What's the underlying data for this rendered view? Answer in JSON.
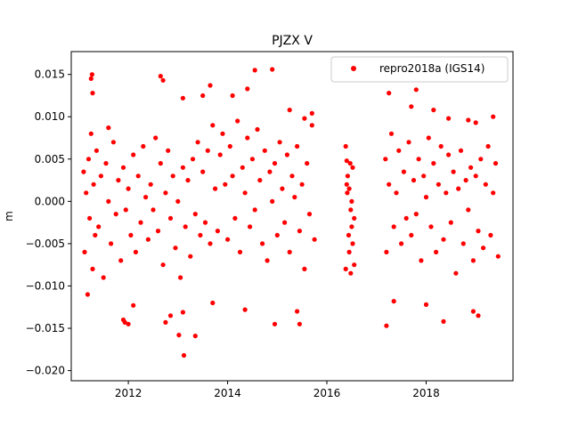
{
  "chart_data": {
    "type": "scatter",
    "title": "PJZX V",
    "xlabel": "",
    "ylabel": "m",
    "xlim": [
      2010.85,
      2019.75
    ],
    "ylim": [
      -0.0212,
      0.0177
    ],
    "xticks": [
      {
        "value": 2012,
        "label": "2012"
      },
      {
        "value": 2014,
        "label": "2014"
      },
      {
        "value": 2016,
        "label": "2016"
      },
      {
        "value": 2018,
        "label": "2018"
      }
    ],
    "yticks": [
      {
        "value": 0.015,
        "label": "0.015"
      },
      {
        "value": 0.01,
        "label": "0.010"
      },
      {
        "value": 0.005,
        "label": "0.005"
      },
      {
        "value": 0.0,
        "label": "0.000"
      },
      {
        "value": -0.005,
        "label": "−0.005"
      },
      {
        "value": -0.01,
        "label": "−0.010"
      },
      {
        "value": -0.015,
        "label": "−0.015"
      },
      {
        "value": -0.02,
        "label": "−0.020"
      }
    ],
    "grid": false,
    "legend_position": "top-right",
    "series": [
      {
        "name": "repro2018a (IGS14)",
        "color": "#ff0000",
        "x": [
          2011.1,
          2011.12,
          2011.15,
          2011.18,
          2011.2,
          2011.22,
          2011.25,
          2011.28,
          2011.3,
          2011.33,
          2011.36,
          2011.4,
          2011.45,
          2011.5,
          2011.55,
          2011.6,
          2011.65,
          2011.7,
          2011.75,
          2011.8,
          2011.85,
          2011.9,
          2011.95,
          2012.0,
          2012.05,
          2012.1,
          2012.15,
          2012.2,
          2012.25,
          2012.3,
          2012.35,
          2012.4,
          2012.45,
          2012.5,
          2012.55,
          2012.6,
          2012.65,
          2012.7,
          2012.75,
          2012.8,
          2012.85,
          2012.9,
          2012.95,
          2013.0,
          2013.05,
          2013.1,
          2013.15,
          2013.2,
          2013.25,
          2013.3,
          2013.35,
          2013.4,
          2013.45,
          2013.5,
          2013.55,
          2013.6,
          2013.65,
          2013.7,
          2013.75,
          2013.8,
          2013.85,
          2013.9,
          2013.95,
          2014.0,
          2014.05,
          2014.1,
          2014.15,
          2014.2,
          2014.25,
          2014.3,
          2014.35,
          2014.4,
          2014.45,
          2014.5,
          2014.55,
          2014.6,
          2014.65,
          2014.7,
          2014.75,
          2014.8,
          2014.85,
          2014.9,
          2014.95,
          2015.0,
          2015.05,
          2015.1,
          2015.15,
          2015.2,
          2015.25,
          2015.3,
          2015.35,
          2015.4,
          2015.45,
          2015.5,
          2015.55,
          2015.6,
          2015.65,
          2015.7,
          2015.75,
          2011.27,
          2011.25,
          2011.28,
          2011.6,
          2012.0,
          2012.65,
          2012.7,
          2013.1,
          2013.5,
          2013.65,
          2014.1,
          2014.4,
          2014.55,
          2014.9,
          2015.25,
          2015.55,
          2015.7,
          2011.9,
          2011.93,
          2012.1,
          2012.75,
          2012.85,
          2013.02,
          2013.1,
          2013.12,
          2013.35,
          2013.7,
          2014.35,
          2014.95,
          2015.4,
          2015.45,
          2016.38,
          2016.4,
          2016.42,
          2016.45,
          2016.48,
          2016.5,
          2016.52,
          2016.55,
          2016.4,
          2016.45,
          2016.5,
          2016.38,
          2016.52,
          2016.44,
          2016.48,
          2016.41,
          2016.55,
          2016.47,
          2017.18,
          2017.2,
          2017.25,
          2017.3,
          2017.35,
          2017.4,
          2017.45,
          2017.5,
          2017.55,
          2017.6,
          2017.65,
          2017.7,
          2017.75,
          2017.8,
          2017.85,
          2017.9,
          2017.95,
          2018.0,
          2018.05,
          2018.1,
          2018.15,
          2018.2,
          2018.25,
          2018.3,
          2018.35,
          2018.4,
          2018.45,
          2018.5,
          2018.55,
          2018.6,
          2018.65,
          2018.7,
          2018.75,
          2018.8,
          2018.85,
          2018.9,
          2018.95,
          2019.0,
          2019.05,
          2019.1,
          2019.15,
          2019.2,
          2019.25,
          2019.3,
          2019.35,
          2019.4,
          2019.45,
          2017.25,
          2017.8,
          2017.7,
          2018.15,
          2018.45,
          2018.85,
          2019.0,
          2019.35,
          2017.2,
          2017.35,
          2018.0,
          2018.35,
          2018.95,
          2019.05
        ],
        "y": [
          0.0035,
          -0.006,
          0.001,
          -0.011,
          0.005,
          -0.002,
          0.008,
          -0.008,
          0.002,
          -0.004,
          0.006,
          -0.003,
          0.003,
          -0.009,
          0.0045,
          0.0,
          -0.005,
          0.007,
          -0.0015,
          0.0025,
          -0.007,
          0.004,
          -0.001,
          0.0015,
          -0.004,
          0.0055,
          -0.006,
          0.003,
          -0.0025,
          0.0065,
          0.0005,
          -0.0045,
          0.002,
          -0.001,
          0.0075,
          -0.0035,
          0.0045,
          -0.0075,
          0.001,
          0.006,
          -0.002,
          0.003,
          -0.0055,
          0.0,
          -0.009,
          0.004,
          -0.003,
          0.0025,
          -0.0065,
          0.005,
          -0.0015,
          0.007,
          -0.004,
          0.0035,
          -0.0025,
          0.006,
          -0.005,
          0.009,
          0.0015,
          -0.0035,
          0.0055,
          0.008,
          0.002,
          -0.0045,
          0.0065,
          0.003,
          -0.002,
          0.0095,
          -0.006,
          0.004,
          0.001,
          0.0075,
          -0.003,
          0.005,
          -0.001,
          0.0085,
          0.0025,
          -0.005,
          0.006,
          -0.007,
          0.0035,
          0.0,
          0.0045,
          -0.004,
          0.007,
          0.0015,
          -0.0025,
          0.0055,
          -0.006,
          0.003,
          0.0005,
          0.0065,
          -0.0035,
          0.002,
          -0.008,
          0.0045,
          -0.0015,
          0.009,
          -0.0045,
          0.015,
          0.0145,
          0.0128,
          0.0087,
          -0.0145,
          0.0148,
          0.0143,
          0.0122,
          0.0125,
          0.0137,
          0.0125,
          0.0133,
          0.0155,
          0.0156,
          0.0108,
          0.0098,
          0.0104,
          -0.014,
          -0.0143,
          -0.0123,
          -0.0143,
          -0.0135,
          -0.0158,
          -0.0131,
          -0.0182,
          -0.0159,
          -0.012,
          -0.0128,
          -0.0145,
          -0.013,
          -0.0145,
          0.0065,
          0.0048,
          0.003,
          0.0015,
          -0.001,
          -0.003,
          -0.005,
          -0.0075,
          0.002,
          -0.006,
          0.0,
          -0.008,
          0.004,
          -0.004,
          -0.0085,
          0.001,
          -0.002,
          0.0045,
          0.005,
          -0.006,
          0.002,
          0.008,
          -0.003,
          0.001,
          0.006,
          -0.005,
          0.0035,
          -0.002,
          0.007,
          -0.004,
          0.0025,
          -0.0015,
          0.005,
          -0.007,
          0.003,
          0.0005,
          0.0075,
          -0.003,
          0.0045,
          -0.006,
          0.002,
          0.0065,
          -0.0045,
          0.001,
          0.0055,
          -0.0025,
          0.0035,
          -0.0085,
          0.0015,
          0.006,
          -0.005,
          0.0025,
          -0.001,
          0.004,
          -0.007,
          0.003,
          -0.0035,
          0.005,
          -0.0055,
          0.002,
          0.0065,
          -0.004,
          0.001,
          0.0045,
          -0.0065,
          0.0128,
          0.0132,
          0.0112,
          0.0108,
          0.0098,
          0.0096,
          0.0093,
          0.01,
          -0.0147,
          -0.0118,
          -0.0122,
          -0.0142,
          -0.013,
          -0.0135
        ]
      }
    ]
  }
}
